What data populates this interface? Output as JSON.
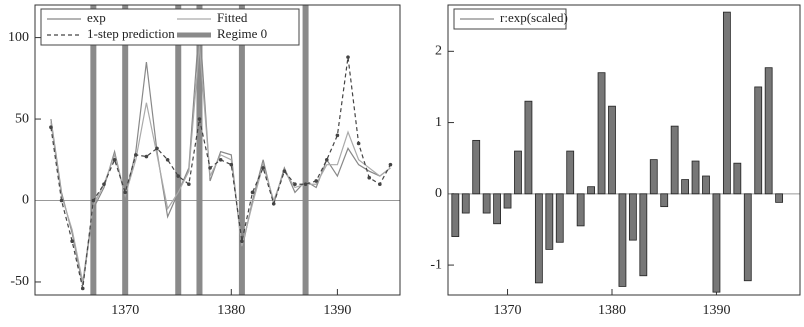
{
  "chart_data": [
    {
      "type": "line",
      "x": [
        1363,
        1364,
        1365,
        1366,
        1367,
        1368,
        1369,
        1370,
        1371,
        1372,
        1373,
        1374,
        1375,
        1376,
        1377,
        1378,
        1379,
        1380,
        1381,
        1382,
        1383,
        1384,
        1385,
        1386,
        1387,
        1388,
        1389,
        1390,
        1391,
        1392,
        1393,
        1394,
        1395
      ],
      "series": [
        {
          "name": "exp",
          "color": "#888888",
          "values": [
            50,
            5,
            -20,
            -52,
            -5,
            8,
            30,
            2,
            30,
            85,
            30,
            -10,
            5,
            20,
            110,
            12,
            30,
            28,
            -30,
            0,
            25,
            -2,
            20,
            5,
            12,
            8,
            25,
            15,
            32,
            22,
            18,
            15,
            20
          ]
        },
        {
          "name": "Fitted",
          "color": "#aaaaaa",
          "values": [
            48,
            3,
            -18,
            -50,
            -3,
            10,
            28,
            3,
            25,
            60,
            28,
            -5,
            5,
            18,
            95,
            15,
            28,
            25,
            -28,
            -2,
            22,
            0,
            18,
            8,
            10,
            10,
            22,
            22,
            42,
            25,
            20,
            15,
            20
          ]
        },
        {
          "name": "1-step prediction",
          "color": "#444444",
          "values": [
            45,
            0,
            -25,
            -54,
            0,
            10,
            25,
            5,
            28,
            27,
            32,
            25,
            15,
            10,
            50,
            20,
            25,
            22,
            -25,
            5,
            20,
            -2,
            18,
            10,
            10,
            12,
            25,
            40,
            88,
            35,
            14,
            10,
            22
          ]
        }
      ],
      "regime": {
        "name": "Regime 0",
        "color": "#8a8a8a",
        "x": [
          1367,
          1370,
          1375,
          1377,
          1381,
          1387
        ]
      },
      "xlim": [
        1361.5,
        1395.9
      ],
      "xticks": [
        1370,
        1380,
        1390
      ],
      "ylim": [
        -58,
        120
      ],
      "yticks": [
        -50,
        0,
        50,
        100
      ]
    },
    {
      "type": "bar",
      "x": [
        1365,
        1366,
        1367,
        1368,
        1369,
        1370,
        1371,
        1372,
        1373,
        1374,
        1375,
        1376,
        1377,
        1378,
        1379,
        1380,
        1381,
        1382,
        1383,
        1384,
        1385,
        1386,
        1387,
        1388,
        1389,
        1390,
        1391,
        1392,
        1393,
        1394,
        1395,
        1396
      ],
      "series": [
        {
          "name": "r:exp(scaled)",
          "color": "#777777",
          "values": [
            -0.6,
            -0.27,
            0.75,
            -0.27,
            -0.42,
            -0.2,
            0.6,
            1.3,
            -1.25,
            -0.78,
            -0.68,
            0.6,
            -0.45,
            0.1,
            1.7,
            1.23,
            -1.3,
            -0.65,
            -1.15,
            0.48,
            -0.18,
            0.95,
            0.2,
            0.46,
            0.25,
            -1.38,
            2.55,
            0.43,
            -1.22,
            1.5,
            1.77,
            -0.12
          ]
        }
      ],
      "xlim": [
        1364.3,
        1398
      ],
      "xticks": [
        1370,
        1380,
        1390
      ],
      "ylim": [
        -1.42,
        2.65
      ],
      "yticks": [
        -1,
        0,
        1,
        2
      ]
    }
  ]
}
